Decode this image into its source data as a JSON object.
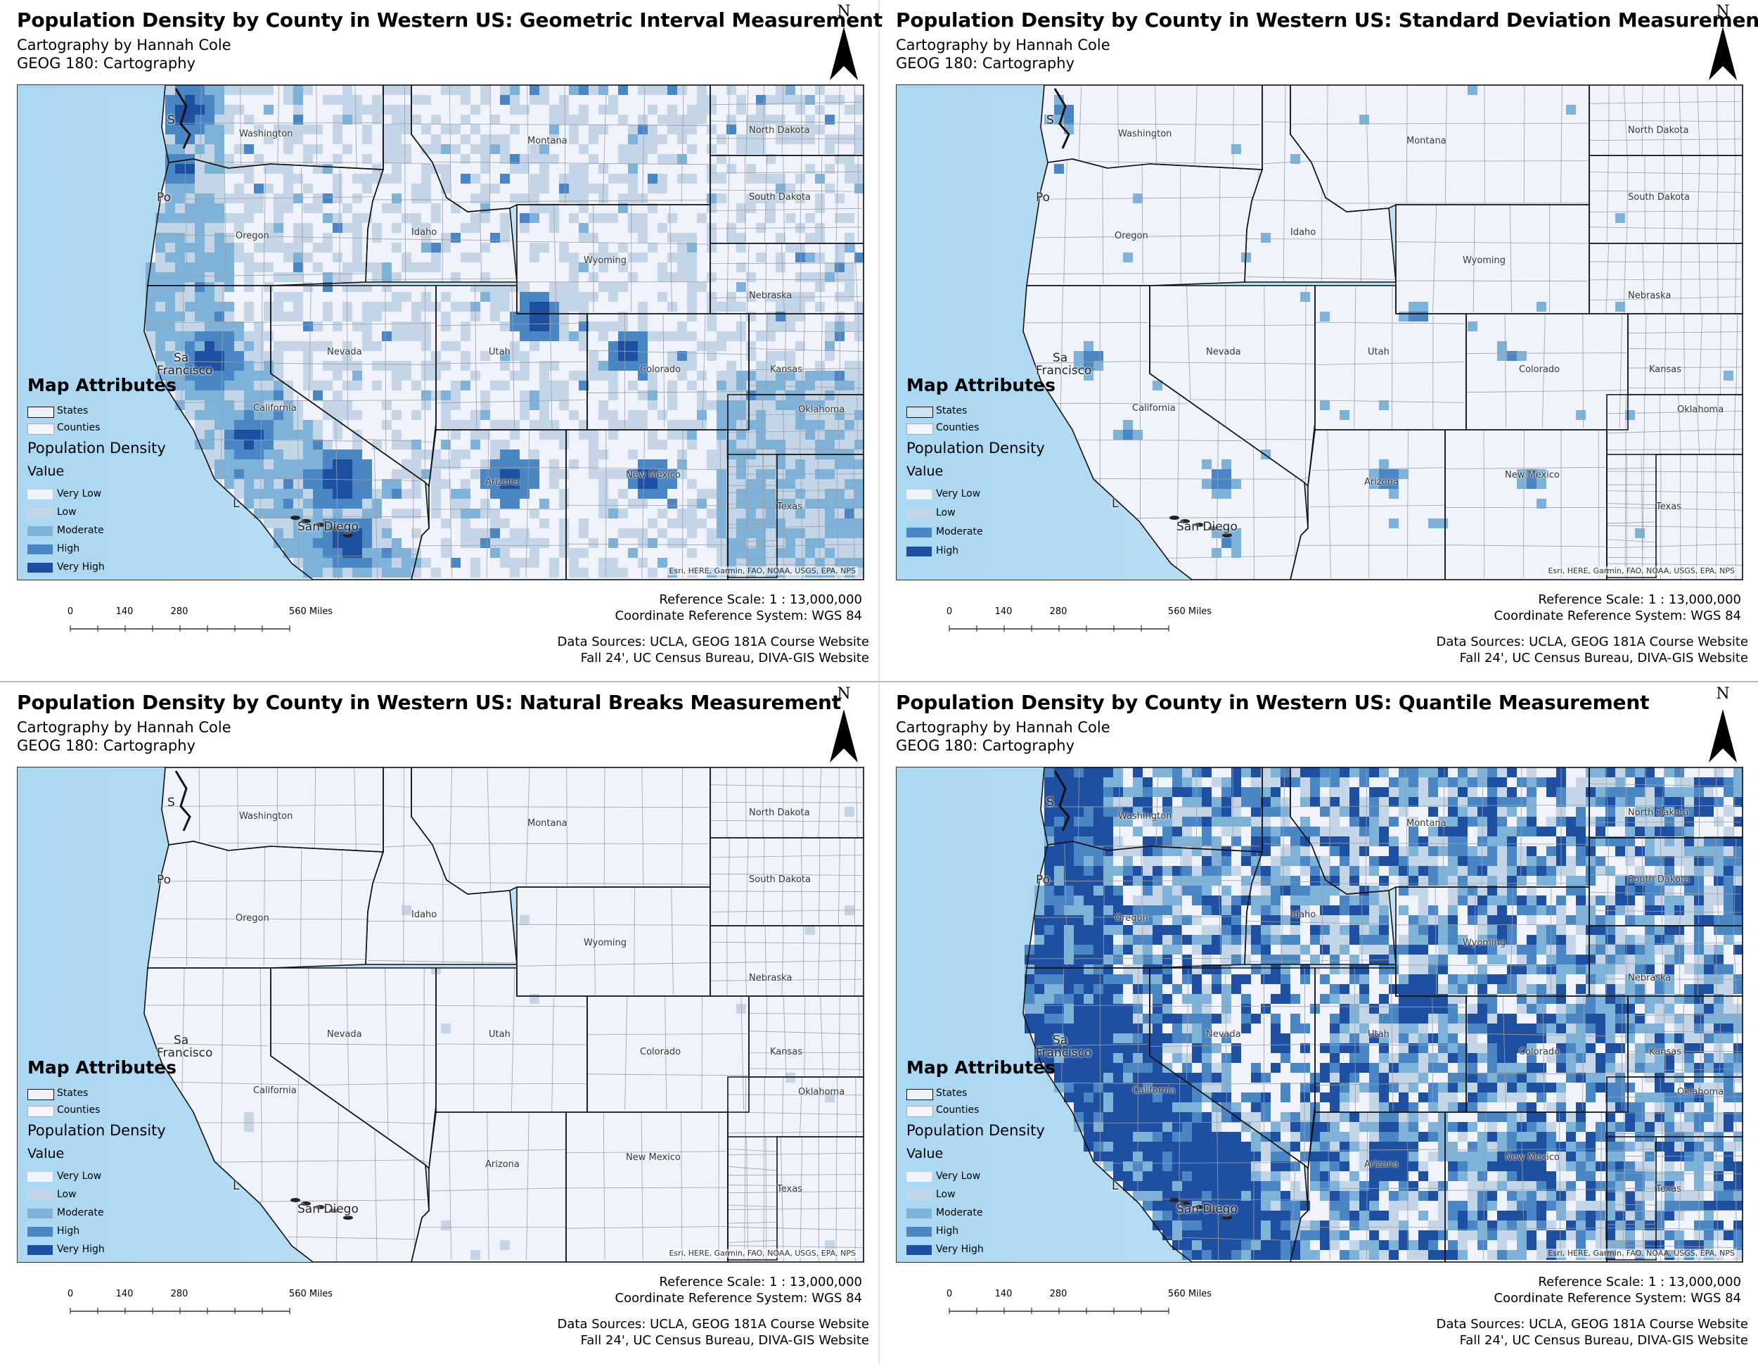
{
  "common": {
    "author": "Cartography by Hannah Cole",
    "course": "GEOG 180: Cartography",
    "north": "N",
    "legend_title": "Map Attributes",
    "states_label": "States",
    "counties_label": "Counties",
    "pop_density_label": "Population Density",
    "value_label": "Value",
    "reference_scale": "Reference Scale:  1 : 13,000,000",
    "crs": "Coordinate Reference System: WGS 84",
    "data_sources_1": "Data Sources: UCLA, GEOG 181A Course Website",
    "data_sources_2": "Fall 24', UC Census Bureau, DIVA-GIS Website",
    "attribution": "Esri, HERE, Garmin, FAO, NOAA, USGS, EPA, NPS",
    "scale_ticks": [
      "0",
      "140",
      "280",
      "560 Miles"
    ],
    "cities": {
      "seattle": "S",
      "portland": "Po",
      "sf_top": "Sa",
      "sf_bottom": "Francisco",
      "la": "L",
      "sd": "San Diego"
    },
    "state_names": {
      "washington": "Washington",
      "oregon": "Oregon",
      "idaho": "Idaho",
      "montana": "Montana",
      "wyoming": "Wyoming",
      "nevada": "Nevada",
      "utah": "Utah",
      "colorado": "Colorado",
      "california": "California",
      "arizona": "Arizona",
      "new_mexico": "New Mexico",
      "north_dakota": "North Dakota",
      "south_dakota": "South Dakota",
      "nebraska": "Nebraska",
      "kansas": "Kansas",
      "oklahoma": "Oklahoma",
      "texas": "Texas"
    },
    "colors": {
      "very_low": "#f0f3fb",
      "low": "#c3d5e6",
      "moderate": "#7fb2d9",
      "high": "#4a85c4",
      "very_high": "#1f4fa0",
      "ocean": "#cfe8f7",
      "ocean_deep": "#aad7f2",
      "land_outside": "#e7ede8"
    }
  },
  "maps": [
    {
      "title": "Population Density by County in Western US: Geometric Interval Measurement",
      "classes": [
        "Very Low",
        "Low",
        "Moderate",
        "High",
        "Very High"
      ],
      "pattern": "geometric"
    },
    {
      "title": "Population Density by County in Western US: Standard Deviation Measurement",
      "classes": [
        "Very Low",
        "Low",
        "Moderate",
        "High"
      ],
      "pattern": "stddev"
    },
    {
      "title": "Population Density by County in Western US: Natural Breaks Measurement",
      "classes": [
        "Very Low",
        "Low",
        "Moderate",
        "High",
        "Very High"
      ],
      "pattern": "natural"
    },
    {
      "title": "Population Density by County in Western US: Quantile Measurement",
      "classes": [
        "Very Low",
        "Low",
        "Moderate",
        "High",
        "Very High"
      ],
      "pattern": "quantile"
    }
  ]
}
